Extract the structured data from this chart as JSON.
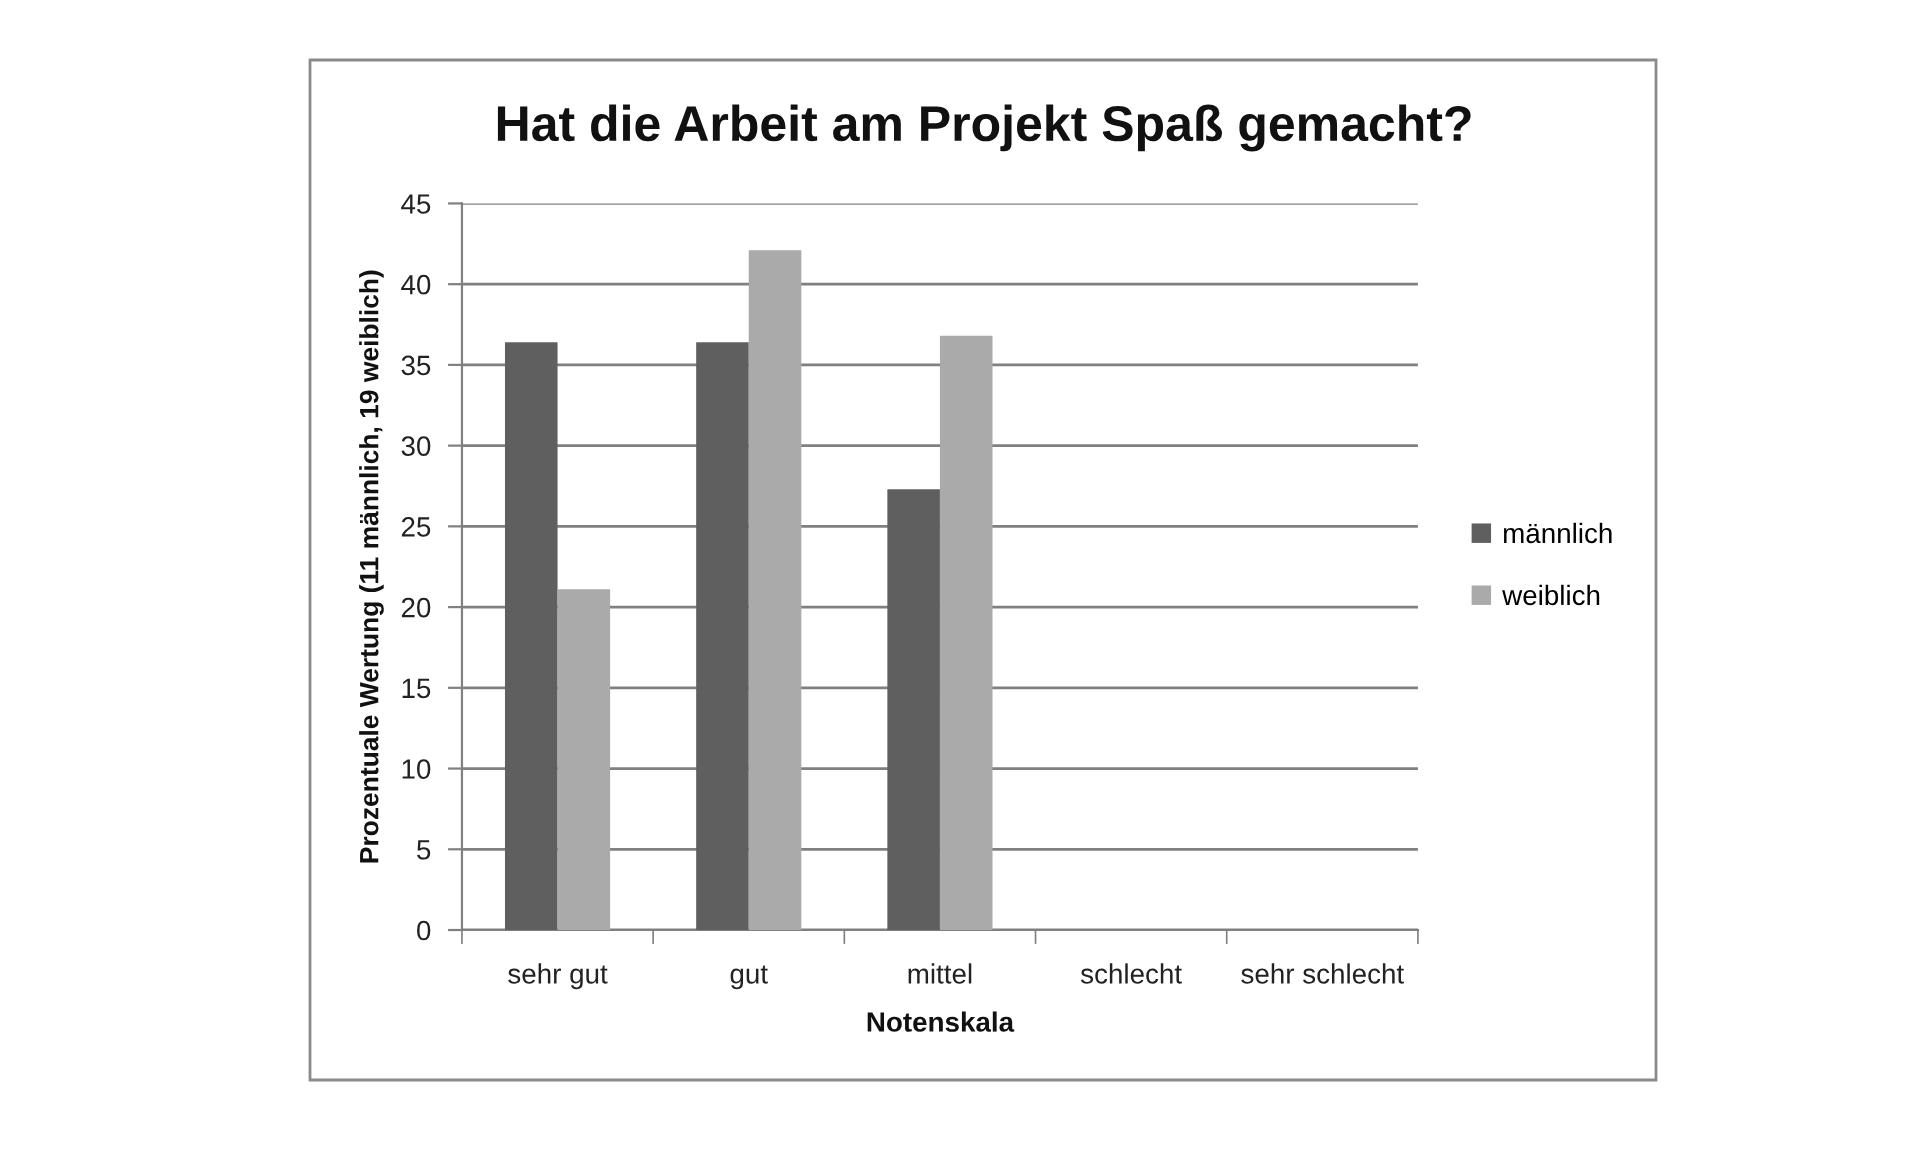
{
  "chart_data": {
    "type": "bar",
    "title": "Hat die Arbeit am Projekt Spaß gemacht?",
    "xlabel": "Notenskala",
    "ylabel": "Prozentuale Wertung (11 männlich, 19 weiblich)",
    "categories": [
      "sehr gut",
      "gut",
      "mittel",
      "schlecht",
      "sehr schlecht"
    ],
    "series": [
      {
        "name": "männlich",
        "color": "#5f5f5f",
        "values": [
          36.4,
          36.4,
          27.3,
          0,
          0
        ]
      },
      {
        "name": "weiblich",
        "color": "#aaaaaa",
        "values": [
          21.1,
          42.1,
          36.8,
          0,
          0
        ]
      }
    ],
    "ylim": [
      0,
      45
    ],
    "yticks": [
      0,
      5,
      10,
      15,
      20,
      25,
      30,
      35,
      40,
      45
    ],
    "grid": "y",
    "legend": "right"
  }
}
